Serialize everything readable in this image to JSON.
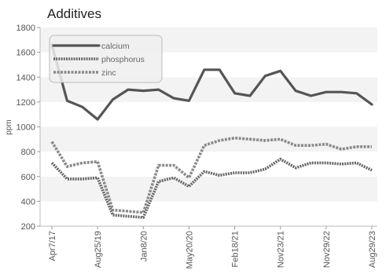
{
  "chart_data": {
    "type": "line",
    "title": "Additives",
    "xlabel": "",
    "ylabel": "ppm",
    "ylim": [
      200,
      1800
    ],
    "yticks": [
      200,
      400,
      600,
      800,
      1000,
      1200,
      1400,
      1600,
      1800
    ],
    "grid": "horizontal-bands",
    "legend_position": "top-left",
    "x_tick_labels": [
      {
        "index": 0,
        "label": "Apr7/17"
      },
      {
        "index": 3,
        "label": "Aug25/19"
      },
      {
        "index": 6,
        "label": "Jan8/20"
      },
      {
        "index": 9,
        "label": "May20/20"
      },
      {
        "index": 12,
        "label": "Feb18/21"
      },
      {
        "index": 15,
        "label": "Nov23/21"
      },
      {
        "index": 18,
        "label": "Nov29/22"
      },
      {
        "index": 21,
        "label": "Aug29/23"
      }
    ],
    "point_count": 22,
    "series": [
      {
        "name": "calcium",
        "color": "#555555",
        "style": "solid",
        "values": [
          1660,
          1210,
          1160,
          1060,
          1220,
          1300,
          1290,
          1300,
          1230,
          1210,
          1460,
          1460,
          1270,
          1250,
          1410,
          1450,
          1290,
          1250,
          1280,
          1280,
          1270,
          1180
        ]
      },
      {
        "name": "phosphorus",
        "color": "#666666",
        "style": "dotted",
        "values": [
          710,
          580,
          580,
          590,
          290,
          280,
          270,
          560,
          590,
          520,
          640,
          610,
          630,
          630,
          660,
          740,
          670,
          710,
          710,
          700,
          710,
          650
        ]
      },
      {
        "name": "zinc",
        "color": "#8a8a8a",
        "style": "dashed",
        "values": [
          880,
          680,
          710,
          720,
          330,
          320,
          310,
          690,
          690,
          590,
          850,
          890,
          910,
          900,
          890,
          900,
          850,
          850,
          860,
          820,
          840,
          840
        ]
      }
    ]
  }
}
